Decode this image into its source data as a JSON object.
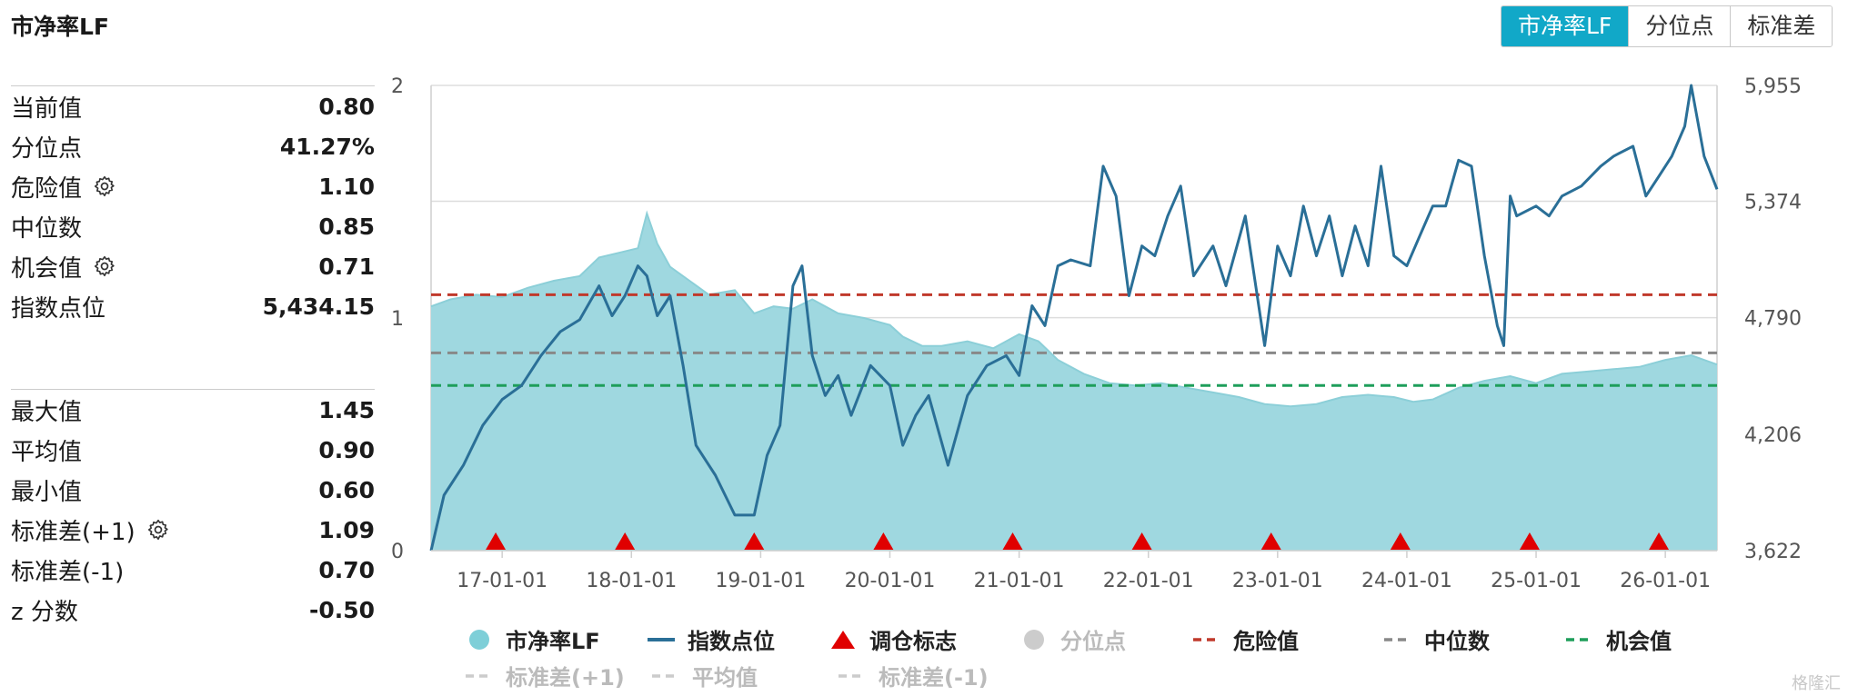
{
  "title": "市净率LF",
  "tabs": [
    {
      "label": "市净率LF",
      "active": true
    },
    {
      "label": "分位点",
      "active": false
    },
    {
      "label": "标准差",
      "active": false
    }
  ],
  "stats_top": [
    {
      "label": "当前值",
      "value": "0.80",
      "gear": false
    },
    {
      "label": "分位点",
      "value": "41.27%",
      "gear": false
    },
    {
      "label": "危险值",
      "value": "1.10",
      "gear": true
    },
    {
      "label": "中位数",
      "value": "0.85",
      "gear": false
    },
    {
      "label": "机会值",
      "value": "0.71",
      "gear": true
    },
    {
      "label": "指数点位",
      "value": "5,434.15",
      "gear": false
    }
  ],
  "stats_bottom": [
    {
      "label": "最大值",
      "value": "1.45",
      "gear": false
    },
    {
      "label": "平均值",
      "value": "0.90",
      "gear": false
    },
    {
      "label": "最小值",
      "value": "0.60",
      "gear": false
    },
    {
      "label": "标准差(+1)",
      "value": "1.09",
      "gear": true
    },
    {
      "label": "标准差(-1)",
      "value": "0.70",
      "gear": false
    },
    {
      "label": "z 分数",
      "value": "-0.50",
      "gear": false
    }
  ],
  "legend_row1": [
    {
      "label": "市净率LF",
      "symbol": "circle",
      "color": "#7ecfd8",
      "dim": false
    },
    {
      "label": "指数点位",
      "symbol": "line",
      "color": "#2a6f97",
      "dim": false
    },
    {
      "label": "调仓标志",
      "symbol": "triangle",
      "color": "#e00000",
      "dim": false
    },
    {
      "label": "分位点",
      "symbol": "circle",
      "color": "#cccccc",
      "dim": true
    },
    {
      "label": "危险值",
      "symbol": "dash",
      "color": "#c0392b",
      "dim": false
    },
    {
      "label": "中位数",
      "symbol": "dash",
      "color": "#888888",
      "dim": false
    },
    {
      "label": "机会值",
      "symbol": "dash",
      "color": "#1e9e5a",
      "dim": false
    }
  ],
  "legend_row2": [
    {
      "label": "标准差(+1)",
      "symbol": "dash",
      "color": "#cccccc",
      "dim": true
    },
    {
      "label": "平均值",
      "symbol": "dash",
      "color": "#cccccc",
      "dim": true
    },
    {
      "label": "标准差(-1)",
      "symbol": "dash",
      "color": "#cccccc",
      "dim": true
    }
  ],
  "watermark": "格隆汇",
  "colors": {
    "area_fill": "#9fd8e0",
    "area_stroke": "#8ccfd8",
    "index_line": "#2a6f97",
    "danger": "#c0392b",
    "median": "#888888",
    "opportunity": "#1e9e5a",
    "marker": "#e00000",
    "grid": "#dddddd"
  },
  "chart_data": {
    "type": "area",
    "left_axis": {
      "ticks": [
        "0",
        "1",
        "2"
      ],
      "range": [
        0,
        2
      ]
    },
    "right_axis": {
      "ticks": [
        "3,622",
        "4,206",
        "4,790",
        "5,374",
        "5,955"
      ],
      "range": [
        3622,
        5955
      ]
    },
    "x_ticks": [
      "17-01-01",
      "18-01-01",
      "19-01-01",
      "20-01-01",
      "21-01-01",
      "22-01-01",
      "23-01-01",
      "24-01-01",
      "25-01-01",
      "26-01-01"
    ],
    "x_range": [
      2016.45,
      2026.4
    ],
    "pb_series": {
      "name": "市净率LF",
      "x": [
        2016.45,
        2016.6,
        2016.8,
        2017.0,
        2017.2,
        2017.4,
        2017.6,
        2017.75,
        2017.9,
        2018.05,
        2018.12,
        2018.2,
        2018.3,
        2018.45,
        2018.6,
        2018.8,
        2018.95,
        2019.1,
        2019.25,
        2019.4,
        2019.6,
        2019.8,
        2020.0,
        2020.1,
        2020.25,
        2020.4,
        2020.6,
        2020.8,
        2021.0,
        2021.15,
        2021.3,
        2021.5,
        2021.7,
        2021.9,
        2022.1,
        2022.3,
        2022.5,
        2022.7,
        2022.9,
        2023.1,
        2023.3,
        2023.5,
        2023.7,
        2023.9,
        2024.05,
        2024.2,
        2024.4,
        2024.6,
        2024.8,
        2025.0,
        2025.2,
        2025.4,
        2025.6,
        2025.8,
        2026.0,
        2026.2,
        2026.4
      ],
      "y": [
        1.05,
        1.08,
        1.1,
        1.09,
        1.13,
        1.16,
        1.18,
        1.26,
        1.28,
        1.3,
        1.45,
        1.32,
        1.22,
        1.16,
        1.1,
        1.12,
        1.02,
        1.05,
        1.04,
        1.08,
        1.02,
        1.0,
        0.97,
        0.92,
        0.88,
        0.88,
        0.9,
        0.87,
        0.93,
        0.9,
        0.82,
        0.76,
        0.72,
        0.71,
        0.72,
        0.7,
        0.68,
        0.66,
        0.63,
        0.62,
        0.63,
        0.66,
        0.67,
        0.66,
        0.64,
        0.65,
        0.7,
        0.73,
        0.75,
        0.72,
        0.76,
        0.77,
        0.78,
        0.79,
        0.82,
        0.84,
        0.8
      ]
    },
    "index_series": {
      "name": "指数点位",
      "x": [
        2016.45,
        2016.55,
        2016.7,
        2016.85,
        2017.0,
        2017.15,
        2017.3,
        2017.45,
        2017.6,
        2017.75,
        2017.85,
        2017.95,
        2018.05,
        2018.12,
        2018.2,
        2018.3,
        2018.4,
        2018.5,
        2018.65,
        2018.8,
        2018.95,
        2019.05,
        2019.15,
        2019.25,
        2019.32,
        2019.4,
        2019.5,
        2019.6,
        2019.7,
        2019.85,
        2020.0,
        2020.1,
        2020.2,
        2020.3,
        2020.45,
        2020.6,
        2020.75,
        2020.9,
        2021.0,
        2021.1,
        2021.2,
        2021.3,
        2021.4,
        2021.55,
        2021.65,
        2021.75,
        2021.85,
        2021.95,
        2022.05,
        2022.15,
        2022.25,
        2022.35,
        2022.5,
        2022.6,
        2022.75,
        2022.9,
        2023.0,
        2023.1,
        2023.2,
        2023.3,
        2023.4,
        2023.5,
        2023.6,
        2023.7,
        2023.8,
        2023.9,
        2024.0,
        2024.1,
        2024.2,
        2024.3,
        2024.4,
        2024.5,
        2024.6,
        2024.7,
        2024.75,
        2024.8,
        2024.85,
        2025.0,
        2025.1,
        2025.2,
        2025.35,
        2025.5,
        2025.6,
        2025.75,
        2025.85,
        2025.95,
        2026.05,
        2026.15,
        2026.2,
        2026.3,
        2026.4
      ],
      "y": [
        3622,
        3900,
        4050,
        4250,
        4380,
        4450,
        4600,
        4720,
        4780,
        4950,
        4800,
        4900,
        5050,
        5000,
        4800,
        4900,
        4550,
        4150,
        4000,
        3800,
        3800,
        4100,
        4250,
        4950,
        5050,
        4600,
        4400,
        4500,
        4300,
        4550,
        4450,
        4150,
        4300,
        4400,
        4050,
        4400,
        4550,
        4600,
        4500,
        4850,
        4750,
        5050,
        5080,
        5050,
        5550,
        5400,
        4900,
        5150,
        5100,
        5300,
        5450,
        5000,
        5150,
        4950,
        5300,
        4650,
        5150,
        5000,
        5350,
        5100,
        5300,
        5000,
        5250,
        5050,
        5550,
        5100,
        5050,
        5200,
        5350,
        5350,
        5580,
        5550,
        5100,
        4750,
        4650,
        5400,
        5300,
        5350,
        5300,
        5400,
        5450,
        5550,
        5600,
        5650,
        5400,
        5500,
        5600,
        5750,
        5955,
        5600,
        5434
      ]
    },
    "reference_lines": [
      {
        "name": "危险值",
        "value": 1.1
      },
      {
        "name": "中位数",
        "value": 0.85
      },
      {
        "name": "机会值",
        "value": 0.71
      }
    ],
    "rebalance_markers_x": [
      2016.95,
      2017.95,
      2018.95,
      2019.95,
      2020.95,
      2021.95,
      2022.95,
      2023.95,
      2024.95,
      2025.95
    ]
  }
}
